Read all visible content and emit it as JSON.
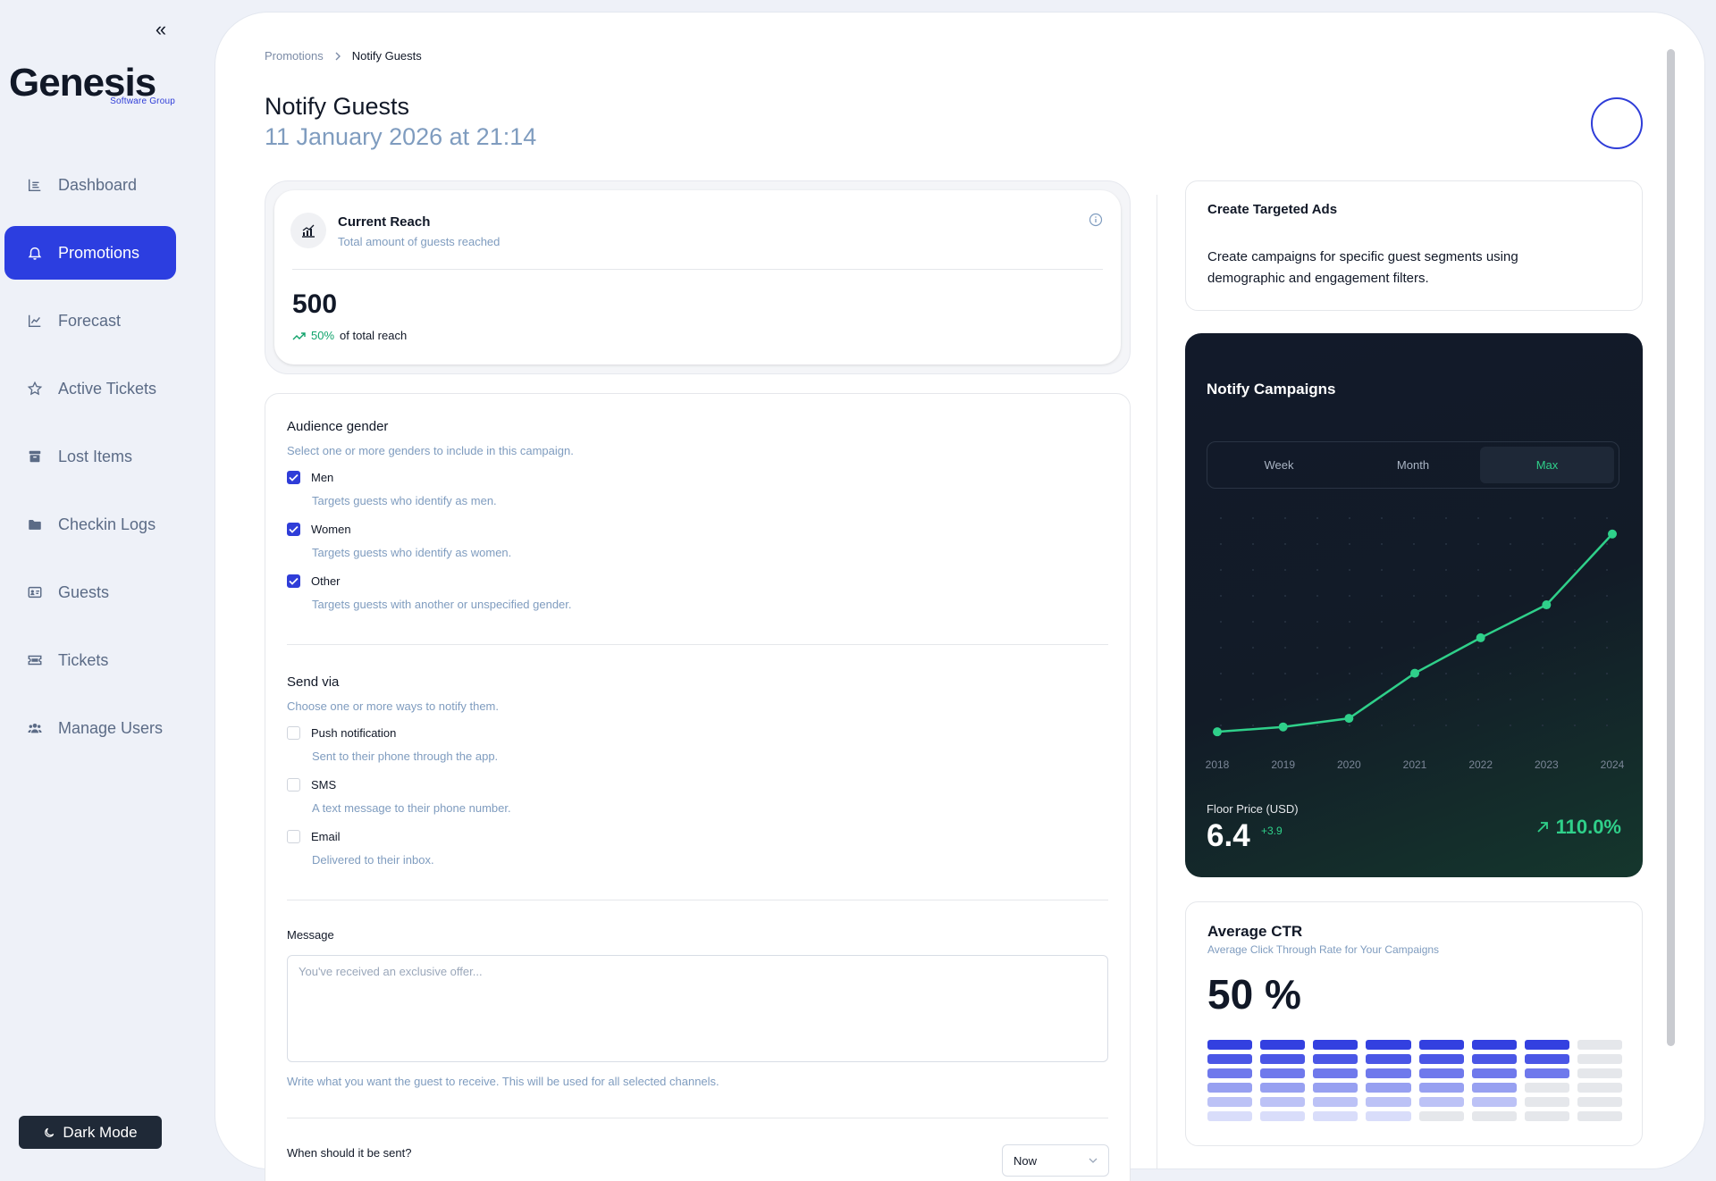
{
  "sidebar": {
    "collapse_label": "«",
    "logo": {
      "main": "Genesis",
      "sub": "Software Group"
    },
    "items": [
      {
        "label": "Dashboard",
        "icon": "dashboard-icon",
        "active": false
      },
      {
        "label": "Promotions",
        "icon": "bell-icon",
        "active": true
      },
      {
        "label": "Forecast",
        "icon": "chart-line-icon",
        "active": false
      },
      {
        "label": "Active Tickets",
        "icon": "star-icon",
        "active": false
      },
      {
        "label": "Lost Items",
        "icon": "archive-icon",
        "active": false
      },
      {
        "label": "Checkin Logs",
        "icon": "folder-icon",
        "active": false
      },
      {
        "label": "Guests",
        "icon": "id-card-icon",
        "active": false
      },
      {
        "label": "Tickets",
        "icon": "ticket-icon",
        "active": false
      },
      {
        "label": "Manage Users",
        "icon": "users-icon",
        "active": false
      }
    ],
    "dark_mode_label": "Dark Mode"
  },
  "header": {
    "breadcrumb": {
      "parent": "Promotions",
      "current": "Notify Guests"
    },
    "title": "Notify Guests",
    "date": "11 January 2026 at 21:14"
  },
  "reach": {
    "title": "Current Reach",
    "subtitle": "Total amount of guests reached",
    "value": "500",
    "percent": "50%",
    "percent_label": "of total reach"
  },
  "form": {
    "gender": {
      "title": "Audience gender",
      "subtitle": "Select one or more genders to include in this campaign.",
      "options": [
        {
          "label": "Men",
          "desc": "Targets guests who identify as men.",
          "checked": true
        },
        {
          "label": "Women",
          "desc": "Targets guests who identify as women.",
          "checked": true
        },
        {
          "label": "Other",
          "desc": "Targets guests with another or unspecified gender.",
          "checked": true
        }
      ]
    },
    "send_via": {
      "title": "Send via",
      "subtitle": "Choose one or more ways to notify them.",
      "options": [
        {
          "label": "Push notification",
          "desc": "Sent to their phone through the app.",
          "checked": false
        },
        {
          "label": "SMS",
          "desc": "A text message to their phone number.",
          "checked": false
        },
        {
          "label": "Email",
          "desc": "Delivered to their inbox.",
          "checked": false
        }
      ]
    },
    "message": {
      "label": "Message",
      "placeholder": "You've received an exclusive offer...",
      "help": "Write what you want the guest to receive. This will be used for all selected channels."
    },
    "schedule": {
      "label": "When should it be sent?",
      "value": "Now"
    }
  },
  "ads": {
    "title": "Create Targeted Ads",
    "text": "Create campaigns for specific guest segments using demographic and engagement filters."
  },
  "campaigns": {
    "title": "Notify Campaigns",
    "tabs": [
      "Week",
      "Month",
      "Max"
    ],
    "active_tab": "Max",
    "floor_label": "Floor Price (USD)",
    "floor_value": "6.4",
    "floor_delta": "+3.9",
    "growth": "110.0%"
  },
  "chart_data": {
    "type": "line",
    "x": [
      "2018",
      "2019",
      "2020",
      "2021",
      "2022",
      "2023",
      "2024"
    ],
    "series": [
      {
        "values": [
          0.5,
          0.9,
          1.6,
          5.3,
          8.2,
          10.9,
          16.7
        ]
      }
    ],
    "ylim": [
      0,
      18
    ],
    "grid": "dots",
    "color": "#2fd08a"
  },
  "ctr": {
    "title": "Average CTR",
    "subtitle": "Average Click Through Rate for Your Campaigns",
    "value": "50 %",
    "columns_filled": [
      7,
      7,
      7,
      6,
      5,
      5,
      3,
      0
    ],
    "colors": [
      "#3340e0",
      "#4a56e6",
      "#6f79ec",
      "#97a0f1",
      "#bcc2f6",
      "#d9ddfa"
    ],
    "empty_color": "#e5e7eb"
  },
  "colors": {
    "accent": "#2c3ee0",
    "muted": "#7f9cbf",
    "success": "#10a36b"
  }
}
